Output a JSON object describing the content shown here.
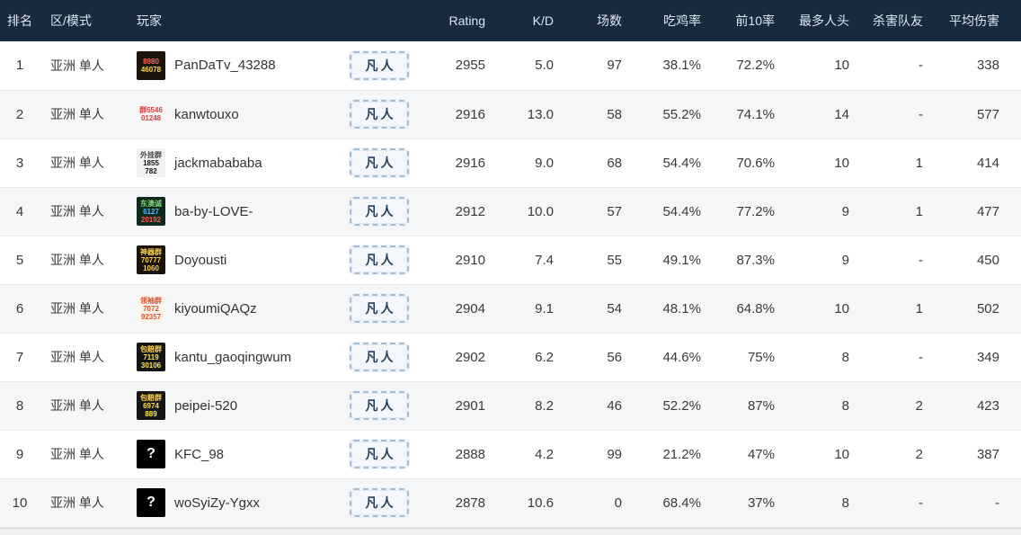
{
  "colors": {
    "header_bg": "#182a3e",
    "header_text": "#dce6f0",
    "row_alt_bg": "#f5f6f7",
    "button_border": "#a7bdd3",
    "button_bg": "#f3f6fa",
    "button_text": "#25405e"
  },
  "table": {
    "action_label": "凡人",
    "columns": [
      {
        "key": "rank",
        "label": "排名"
      },
      {
        "key": "region_mode",
        "label": "区/模式"
      },
      {
        "key": "player",
        "label": "玩家"
      },
      {
        "key": "action",
        "label": ""
      },
      {
        "key": "rating",
        "label": "Rating"
      },
      {
        "key": "kd",
        "label": "K/D"
      },
      {
        "key": "matches",
        "label": "场数"
      },
      {
        "key": "win_rate",
        "label": "吃鸡率"
      },
      {
        "key": "top10_rate",
        "label": "前10率"
      },
      {
        "key": "max_kills",
        "label": "最多人头"
      },
      {
        "key": "team_kills",
        "label": "杀害队友"
      },
      {
        "key": "avg_damage",
        "label": "平均伤害"
      }
    ],
    "rows": [
      {
        "rank": "1",
        "region": "亚洲 单人",
        "player": "PanDaTv_43288",
        "rating": "2955",
        "kd": "5.0",
        "matches": "97",
        "win_rate": "38.1%",
        "top10_rate": "72.2%",
        "max_kills": "10",
        "team_kills": "-",
        "avg_damage": "338",
        "avatar": {
          "bg": "#1c140b",
          "lines": [
            {
              "text": "8980",
              "color": "#ff6b5a"
            },
            {
              "text": "46078",
              "color": "#ffd84d"
            }
          ]
        }
      },
      {
        "rank": "2",
        "region": "亚洲 单人",
        "player": "kanwtouxo",
        "rating": "2916",
        "kd": "13.0",
        "matches": "58",
        "win_rate": "55.2%",
        "top10_rate": "74.1%",
        "max_kills": "14",
        "team_kills": "-",
        "avg_damage": "577",
        "avatar": {
          "bg": "#f6f6f6",
          "lines": [
            {
              "text": "群5546",
              "color": "#e03a3a"
            },
            {
              "text": "01248",
              "color": "#e03a3a"
            }
          ]
        }
      },
      {
        "rank": "3",
        "region": "亚洲 单人",
        "player": "jackmabababa",
        "rating": "2916",
        "kd": "9.0",
        "matches": "68",
        "win_rate": "54.4%",
        "top10_rate": "70.6%",
        "max_kills": "10",
        "team_kills": "1",
        "avg_damage": "414",
        "avatar": {
          "bg": "#f2f2f2",
          "lines": [
            {
              "text": "外挂群",
              "color": "#444444"
            },
            {
              "text": "1855",
              "color": "#111111"
            },
            {
              "text": "782",
              "color": "#111111"
            }
          ]
        }
      },
      {
        "rank": "4",
        "region": "亚洲 单人",
        "player": "ba-by-LOVE-",
        "rating": "2912",
        "kd": "10.0",
        "matches": "57",
        "win_rate": "54.4%",
        "top10_rate": "77.2%",
        "max_kills": "9",
        "team_kills": "1",
        "avg_damage": "477",
        "avatar": {
          "bg": "#0e2a1c",
          "lines": [
            {
              "text": "东澳诚",
              "color": "#7ad97a"
            },
            {
              "text": "6127",
              "color": "#4db8ff"
            },
            {
              "text": "20192",
              "color": "#ff5a4d"
            }
          ]
        }
      },
      {
        "rank": "5",
        "region": "亚洲 单人",
        "player": "Doyousti",
        "rating": "2910",
        "kd": "7.4",
        "matches": "55",
        "win_rate": "49.1%",
        "top10_rate": "87.3%",
        "max_kills": "9",
        "team_kills": "-",
        "avg_damage": "450",
        "avatar": {
          "bg": "#1a1206",
          "lines": [
            {
              "text": "神器群",
              "color": "#ffd24d"
            },
            {
              "text": "70777",
              "color": "#ffd24d"
            },
            {
              "text": "1060",
              "color": "#ffd24d"
            }
          ]
        }
      },
      {
        "rank": "6",
        "region": "亚洲 单人",
        "player": "kiyoumiQAQz",
        "rating": "2904",
        "kd": "9.1",
        "matches": "54",
        "win_rate": "48.1%",
        "top10_rate": "64.8%",
        "max_kills": "10",
        "team_kills": "1",
        "avg_damage": "502",
        "avatar": {
          "bg": "#fbf6ec",
          "lines": [
            {
              "text": "领袖群",
              "color": "#e2502a"
            },
            {
              "text": "7072",
              "color": "#e2502a"
            },
            {
              "text": "92357",
              "color": "#e2502a"
            }
          ]
        }
      },
      {
        "rank": "7",
        "region": "亚洲 单人",
        "player": "kantu_gaoqingwum",
        "rating": "2902",
        "kd": "6.2",
        "matches": "56",
        "win_rate": "44.6%",
        "top10_rate": "75%",
        "max_kills": "8",
        "team_kills": "-",
        "avg_damage": "349",
        "avatar": {
          "bg": "#141414",
          "lines": [
            {
              "text": "包赔群",
              "color": "#ffd24d"
            },
            {
              "text": "7119",
              "color": "#ffe14d"
            },
            {
              "text": "30106",
              "color": "#ffe94d"
            }
          ]
        }
      },
      {
        "rank": "8",
        "region": "亚洲 单人",
        "player": "peipei-520",
        "rating": "2901",
        "kd": "8.2",
        "matches": "46",
        "win_rate": "52.2%",
        "top10_rate": "87%",
        "max_kills": "8",
        "team_kills": "2",
        "avg_damage": "423",
        "avatar": {
          "bg": "#151515",
          "lines": [
            {
              "text": "包赔群",
              "color": "#ffd24d"
            },
            {
              "text": "6974",
              "color": "#ffe14d"
            },
            {
              "text": "889",
              "color": "#ffe94d"
            }
          ]
        }
      },
      {
        "rank": "9",
        "region": "亚洲 单人",
        "player": "KFC_98",
        "rating": "2888",
        "kd": "4.2",
        "matches": "99",
        "win_rate": "21.2%",
        "top10_rate": "47%",
        "max_kills": "10",
        "team_kills": "2",
        "avg_damage": "387",
        "avatar": {
          "bg": "#000000",
          "lines": [
            {
              "text": "?",
              "color": "#ffffff"
            }
          ]
        }
      },
      {
        "rank": "10",
        "region": "亚洲 单人",
        "player": "woSyiZy-Ygxx",
        "rating": "2878",
        "kd": "10.6",
        "matches": "0",
        "win_rate": "68.4%",
        "top10_rate": "37%",
        "max_kills": "8",
        "team_kills": "-",
        "avg_damage": "-",
        "avatar": {
          "bg": "#000000",
          "lines": [
            {
              "text": "?",
              "color": "#ffffff"
            }
          ]
        }
      }
    ]
  }
}
